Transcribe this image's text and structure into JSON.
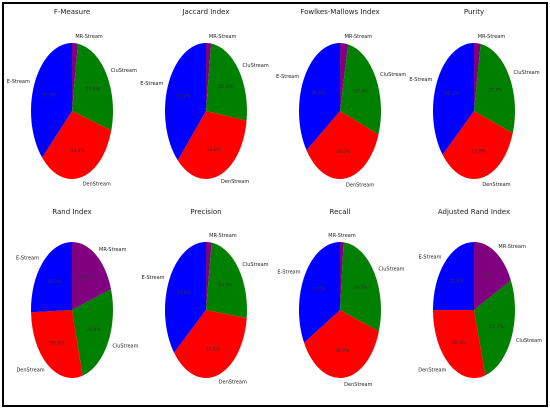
{
  "chart_data": [
    {
      "type": "pie",
      "title": "F-Measure",
      "categories": [
        "E-Stream",
        "MR-Stream",
        "CluStream",
        "DenStream"
      ],
      "values": [
        37.0,
        2.3,
        27.3,
        33.4
      ],
      "labels": [
        "37.0%",
        "2.3%",
        "27.3%",
        "33.4%"
      ]
    },
    {
      "type": "pie",
      "title": "Jaccard Index",
      "categories": [
        "E-Stream",
        "MR-Stream",
        "CluStream",
        "DenStream"
      ],
      "values": [
        37.9,
        2.0,
        25.3,
        34.8
      ],
      "labels": [
        "37.9%",
        "2.0%",
        "25.3%",
        "34.8%"
      ]
    },
    {
      "type": "pie",
      "title": "Fowlkes-Mallows Index",
      "categories": [
        "E-Stream",
        "MR-Stream",
        "CluStream",
        "DenStream"
      ],
      "values": [
        34.8,
        3.2,
        27.4,
        34.6
      ],
      "labels": [
        "34.8%",
        "3.2%",
        "27.4%",
        "34.6%"
      ]
    },
    {
      "type": "pie",
      "title": "Purity",
      "categories": [
        "E-Stream",
        "MR-Stream",
        "CluStream",
        "DenStream"
      ],
      "values": [
        36.1,
        2.6,
        27.7,
        33.6
      ],
      "labels": [
        "36.1%",
        "2.6%",
        "27.7%",
        "33.6%"
      ]
    },
    {
      "type": "pie",
      "title": "Rand Index",
      "categories": [
        "E-Stream",
        "MR-Stream",
        "CluStream",
        "DenStream"
      ],
      "values": [
        25.5,
        20.0,
        25.8,
        28.6
      ],
      "labels": [
        "25.5%",
        "20.0%",
        "25.8%",
        "28.6%"
      ]
    },
    {
      "type": "pie",
      "title": "Precision",
      "categories": [
        "E-Stream",
        "MR-Stream",
        "CluStream",
        "DenStream"
      ],
      "values": [
        35.8,
        2.2,
        24.7,
        37.3
      ],
      "labels": [
        "35.8%",
        "2.2%",
        "24.7%",
        "37.3%"
      ]
    },
    {
      "type": "pie",
      "title": "Recall",
      "categories": [
        "E-Stream",
        "MR-Stream",
        "CluStream",
        "DenStream"
      ],
      "values": [
        33.0,
        1.4,
        28.7,
        36.9
      ],
      "labels": [
        "33.0%",
        "1.4%",
        "28.7%",
        "36.9%"
      ]
    },
    {
      "type": "pie",
      "title": "Adjusted Rand Index",
      "categories": [
        "E-Stream",
        "MR-Stream",
        "CluStream",
        "DenStream"
      ],
      "values": [
        25.0,
        17.8,
        27.7,
        29.4
      ],
      "labels": [
        "25.0%",
        "17.8%",
        "27.7%",
        "29.4%"
      ]
    }
  ],
  "colors": {
    "E-Stream": "#0000ff",
    "MR-Stream": "#800080",
    "CluStream": "#008000",
    "DenStream": "#ff0000"
  }
}
